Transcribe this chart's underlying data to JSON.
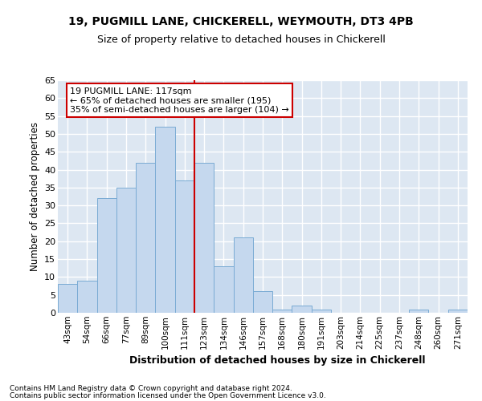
{
  "title1": "19, PUGMILL LANE, CHICKERELL, WEYMOUTH, DT3 4PB",
  "title2": "Size of property relative to detached houses in Chickerell",
  "xlabel_bottom": "Distribution of detached houses by size in Chickerell",
  "ylabel": "Number of detached properties",
  "categories": [
    "43sqm",
    "54sqm",
    "66sqm",
    "77sqm",
    "89sqm",
    "100sqm",
    "111sqm",
    "123sqm",
    "134sqm",
    "146sqm",
    "157sqm",
    "168sqm",
    "180sqm",
    "191sqm",
    "203sqm",
    "214sqm",
    "225sqm",
    "237sqm",
    "248sqm",
    "260sqm",
    "271sqm"
  ],
  "values": [
    8,
    9,
    32,
    35,
    42,
    52,
    37,
    42,
    13,
    21,
    6,
    1,
    2,
    1,
    0,
    0,
    0,
    0,
    1,
    0,
    1
  ],
  "bar_color": "#c5d8ee",
  "bar_edge_color": "#7aabd4",
  "annotation_line1": "19 PUGMILL LANE: 117sqm",
  "annotation_line2": "← 65% of detached houses are smaller (195)",
  "annotation_line3": "35% of semi-detached houses are larger (104) →",
  "annotation_box_color": "#ffffff",
  "annotation_box_edge_color": "#cc0000",
  "vline_color": "#cc0000",
  "background_color": "#dde7f2",
  "grid_color": "#ffffff",
  "ylim": [
    0,
    65
  ],
  "yticks": [
    0,
    5,
    10,
    15,
    20,
    25,
    30,
    35,
    40,
    45,
    50,
    55,
    60,
    65
  ],
  "footer1": "Contains HM Land Registry data © Crown copyright and database right 2024.",
  "footer2": "Contains public sector information licensed under the Open Government Licence v3.0."
}
